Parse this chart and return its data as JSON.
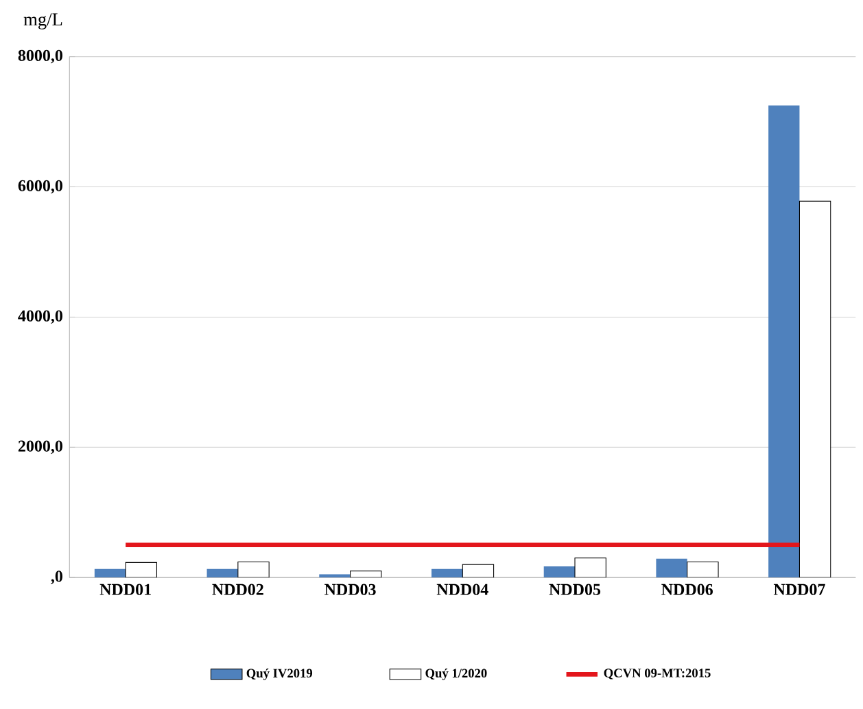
{
  "chart_data": {
    "type": "bar",
    "ylabel": "mg/L",
    "categories": [
      "NDD01",
      "NDD02",
      "NDD03",
      "NDD04",
      "NDD05",
      "NDD06",
      "NDD07"
    ],
    "series": [
      {
        "name": "Quý IV2019",
        "color": "#4f81bd",
        "values": [
          130,
          130,
          50,
          130,
          170,
          290,
          7250
        ]
      },
      {
        "name": "Quý 1/2020",
        "color": "#ffffff",
        "values": [
          230,
          240,
          100,
          200,
          300,
          240,
          5780
        ]
      },
      {
        "name": "QCVN 09-MT:2015",
        "type": "line",
        "color": "#e3161c",
        "values": [
          500,
          500,
          500,
          500,
          500,
          500,
          500
        ]
      }
    ],
    "ylim": [
      0,
      8000
    ],
    "yticks": [
      {
        "value": 0,
        "label": ",0"
      },
      {
        "value": 2000,
        "label": "2000,0"
      },
      {
        "value": 4000,
        "label": "4000,0"
      },
      {
        "value": 6000,
        "label": "6000,0"
      },
      {
        "value": 8000,
        "label": "8000,0"
      }
    ],
    "grid": "y",
    "legend": "bottom",
    "marker": "none"
  }
}
